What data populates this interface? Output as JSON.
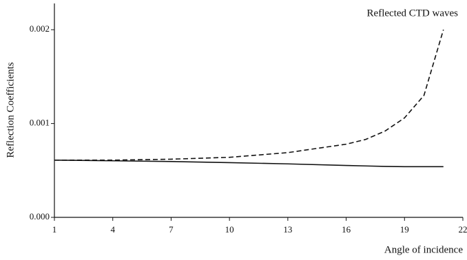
{
  "chart_data": {
    "type": "line",
    "title": "Reflected CTD waves",
    "x_label": "Angle of incidence",
    "y_label": "Reflection Coefficients",
    "x": [
      1,
      4,
      7,
      10,
      13,
      16,
      17,
      18,
      19,
      20,
      21
    ],
    "series": [
      {
        "color": "#111111",
        "dashed": false,
        "values": [
          0.00061,
          0.000603,
          0.000595,
          0.000583,
          0.00057,
          0.000553,
          0.000548,
          0.000543,
          0.00054,
          0.00054,
          0.00054
        ]
      },
      {
        "color": "#111111",
        "dashed": true,
        "values": [
          0.00061,
          0.00061,
          0.00062,
          0.00064,
          0.00069,
          0.00078,
          0.00083,
          0.00092,
          0.00106,
          0.0013,
          0.002
        ]
      }
    ],
    "xlim": [
      1,
      22
    ],
    "xticks": [
      1,
      4,
      7,
      10,
      13,
      16,
      19,
      22
    ],
    "ylim": [
      0,
      0.00228
    ],
    "yticks": [
      {
        "value": 0,
        "label": "0.000"
      },
      {
        "value": 0.001,
        "label": "0.001"
      },
      {
        "value": 0.002,
        "label": "0.002"
      }
    ],
    "grid": false
  }
}
